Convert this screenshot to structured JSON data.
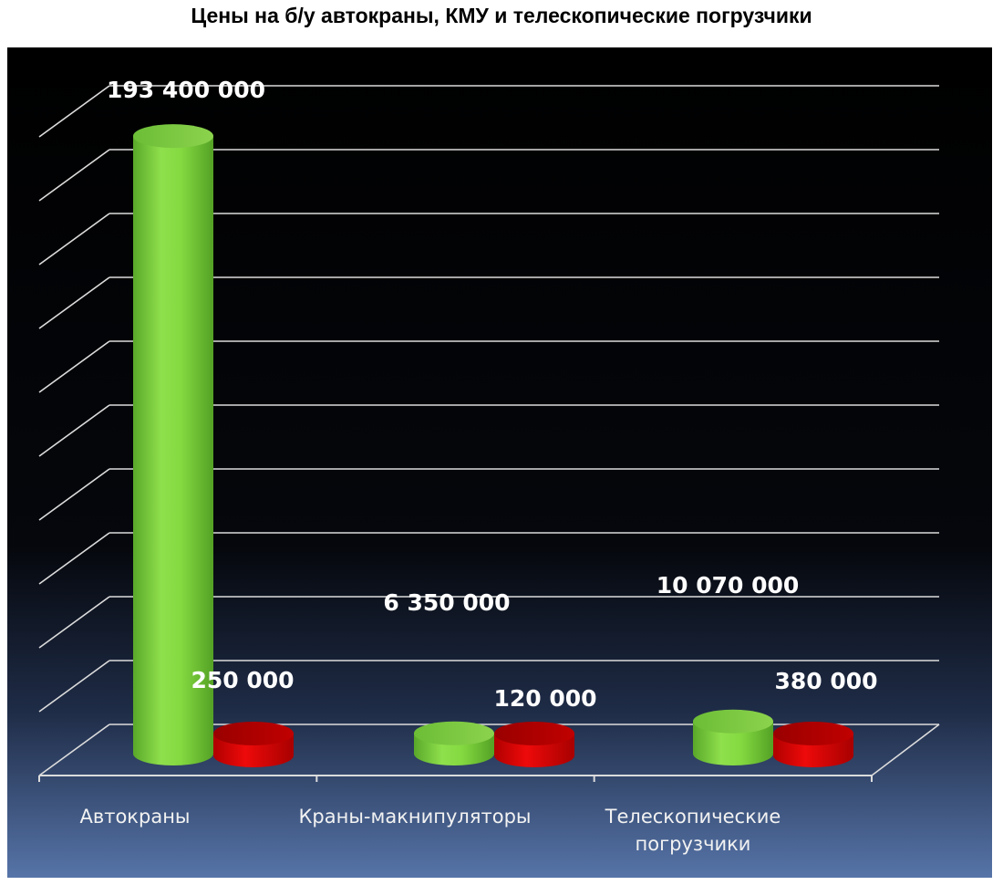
{
  "chart_data": {
    "type": "bar",
    "title": "Цены на б/у автокраны, КМУ и телескопические погрузчики",
    "categories": [
      [
        "Автокраны"
      ],
      [
        "Краны-макнипуляторы"
      ],
      [
        "Телескопические",
        "погрузчики"
      ]
    ],
    "series": [
      {
        "values": [
          193400000,
          6350000,
          10070000
        ],
        "labels": [
          "193 400 000",
          "6 350 000",
          "10 070 000"
        ],
        "color": "#7ed33a"
      },
      {
        "values": [
          250000,
          120000,
          380000
        ],
        "labels": [
          "250 000",
          "120 000",
          "380 000"
        ],
        "color": "#cc0000"
      }
    ],
    "ylim": [
      0,
      200000000
    ],
    "grid": true,
    "legend": "none"
  }
}
